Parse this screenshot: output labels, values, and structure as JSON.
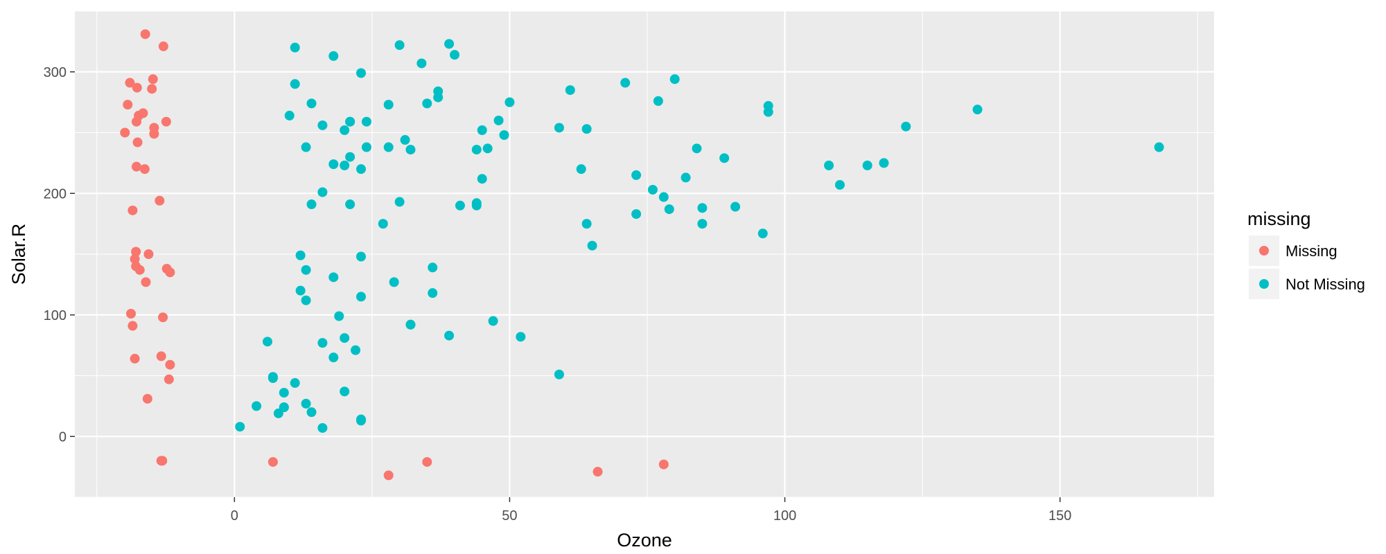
{
  "chart_data": {
    "type": "scatter",
    "xlabel": "Ozone",
    "ylabel": "Solar.R",
    "xlim": [
      -29,
      178
    ],
    "ylim": [
      -50,
      350
    ],
    "x_ticks": [
      0,
      50,
      100,
      150
    ],
    "y_ticks": [
      0,
      100,
      200,
      300
    ],
    "x_tick_labels": [
      "0",
      "50",
      "100",
      "150"
    ],
    "y_tick_labels": [
      "0",
      "100",
      "200",
      "300"
    ],
    "grid": true,
    "legend": {
      "title": "missing",
      "position": "right",
      "entries": [
        "Missing",
        "Not Missing"
      ]
    },
    "colors": {
      "Missing": "#F8766D",
      "Not Missing": "#00BFC4"
    },
    "series": [
      {
        "name": "Missing",
        "color": "#F8766D",
        "points": [
          [
            -16.2,
            331
          ],
          [
            -12.9,
            321
          ],
          [
            -14.8,
            294
          ],
          [
            -19.0,
            291
          ],
          [
            -17.7,
            287
          ],
          [
            -15.0,
            286
          ],
          [
            -19.4,
            273
          ],
          [
            -16.6,
            266
          ],
          [
            -17.4,
            264
          ],
          [
            -17.8,
            259
          ],
          [
            -12.4,
            259
          ],
          [
            -14.6,
            254
          ],
          [
            -14.6,
            249
          ],
          [
            -19.9,
            250
          ],
          [
            -17.6,
            242
          ],
          [
            -17.8,
            222
          ],
          [
            -16.3,
            220
          ],
          [
            -13.6,
            194
          ],
          [
            -18.5,
            186
          ],
          [
            -15.6,
            150
          ],
          [
            -17.9,
            152
          ],
          [
            -18.1,
            146
          ],
          [
            -17.9,
            140
          ],
          [
            -17.2,
            137
          ],
          [
            -12.3,
            138
          ],
          [
            -11.7,
            135
          ],
          [
            -16.1,
            127
          ],
          [
            -18.8,
            101
          ],
          [
            -13.0,
            98
          ],
          [
            -18.5,
            91
          ],
          [
            -13.3,
            66
          ],
          [
            -18.1,
            64
          ],
          [
            -11.7,
            59
          ],
          [
            -11.9,
            47
          ],
          [
            -15.8,
            31
          ],
          [
            -13.3,
            -20
          ],
          [
            -13.1,
            -20
          ],
          [
            7.0,
            -21
          ],
          [
            28.0,
            -32
          ],
          [
            35.0,
            -21
          ],
          [
            66.0,
            -29
          ],
          [
            78.0,
            -23
          ]
        ]
      },
      {
        "name": "Not Missing",
        "color": "#00BFC4",
        "points": [
          [
            41,
            190
          ],
          [
            36,
            118
          ],
          [
            12,
            149
          ],
          [
            18,
            313
          ],
          [
            23,
            299
          ],
          [
            19,
            99
          ],
          [
            8,
            19
          ],
          [
            16,
            256
          ],
          [
            11,
            290
          ],
          [
            14,
            274
          ],
          [
            34,
            307
          ],
          [
            6,
            78
          ],
          [
            30,
            322
          ],
          [
            11,
            44
          ],
          [
            1,
            8
          ],
          [
            11,
            320
          ],
          [
            4,
            25
          ],
          [
            32,
            92
          ],
          [
            23,
            13
          ],
          [
            45,
            252
          ],
          [
            115,
            223
          ],
          [
            37,
            279
          ],
          [
            29,
            127
          ],
          [
            71,
            291
          ],
          [
            39,
            323
          ],
          [
            23,
            148
          ],
          [
            21,
            191
          ],
          [
            37,
            284
          ],
          [
            20,
            37
          ],
          [
            12,
            120
          ],
          [
            13,
            137
          ],
          [
            135,
            269
          ],
          [
            49,
            248
          ],
          [
            32,
            236
          ],
          [
            64,
            175
          ],
          [
            40,
            314
          ],
          [
            77,
            276
          ],
          [
            97,
            267
          ],
          [
            97,
            272
          ],
          [
            85,
            175
          ],
          [
            10,
            264
          ],
          [
            27,
            175
          ],
          [
            7,
            48
          ],
          [
            48,
            260
          ],
          [
            35,
            274
          ],
          [
            61,
            285
          ],
          [
            79,
            187
          ],
          [
            63,
            220
          ],
          [
            16,
            7
          ],
          [
            80,
            294
          ],
          [
            108,
            223
          ],
          [
            20,
            81
          ],
          [
            52,
            82
          ],
          [
            82,
            213
          ],
          [
            50,
            275
          ],
          [
            64,
            253
          ],
          [
            59,
            254
          ],
          [
            39,
            83
          ],
          [
            9,
            24
          ],
          [
            16,
            77
          ],
          [
            122,
            255
          ],
          [
            89,
            229
          ],
          [
            110,
            207
          ],
          [
            44,
            192
          ],
          [
            28,
            273
          ],
          [
            65,
            157
          ],
          [
            22,
            71
          ],
          [
            59,
            51
          ],
          [
            23,
            115
          ],
          [
            31,
            244
          ],
          [
            44,
            190
          ],
          [
            21,
            259
          ],
          [
            9,
            36
          ],
          [
            45,
            212
          ],
          [
            168,
            238
          ],
          [
            73,
            215
          ],
          [
            76,
            203
          ],
          [
            118,
            225
          ],
          [
            84,
            237
          ],
          [
            85,
            188
          ],
          [
            96,
            167
          ],
          [
            78,
            197
          ],
          [
            73,
            183
          ],
          [
            91,
            189
          ],
          [
            47,
            95
          ],
          [
            32,
            92
          ],
          [
            20,
            252
          ],
          [
            23,
            220
          ],
          [
            21,
            230
          ],
          [
            24,
            259
          ],
          [
            44,
            236
          ],
          [
            21,
            259
          ],
          [
            28,
            238
          ],
          [
            9,
            24
          ],
          [
            13,
            112
          ],
          [
            46,
            237
          ],
          [
            18,
            224
          ],
          [
            13,
            27
          ],
          [
            24,
            238
          ],
          [
            16,
            201
          ],
          [
            13,
            238
          ],
          [
            23,
            14
          ],
          [
            36,
            139
          ],
          [
            7,
            49
          ],
          [
            14,
            20
          ],
          [
            30,
            193
          ],
          [
            14,
            191
          ],
          [
            18,
            131
          ],
          [
            20,
            223
          ],
          [
            18,
            65
          ]
        ]
      }
    ]
  }
}
